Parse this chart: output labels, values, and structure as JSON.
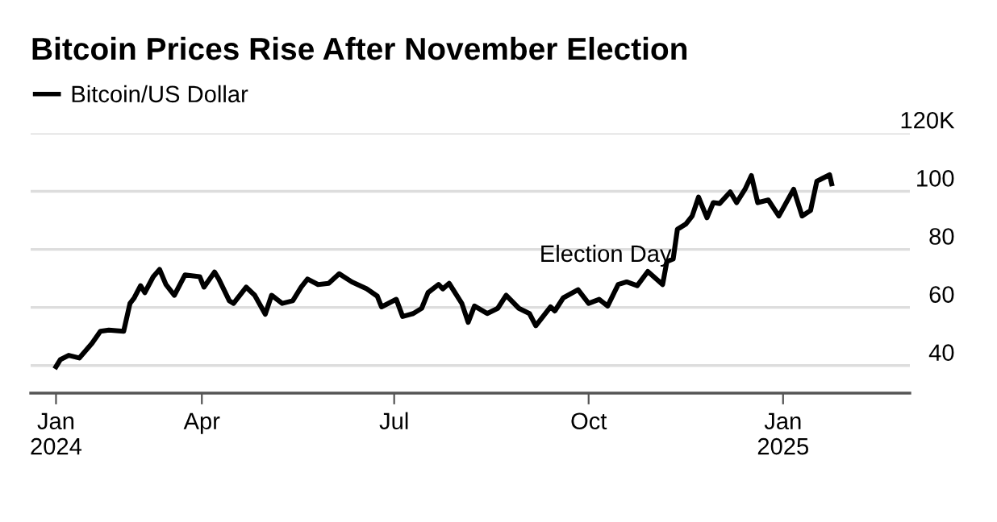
{
  "chart_data": {
    "type": "line",
    "title": "Bitcoin Prices Rise After November Election",
    "x": [
      "2024-01-23",
      "2024-01-25",
      "2024-01-29",
      "2024-02-03",
      "2024-02-09",
      "2024-02-13",
      "2024-02-17",
      "2024-02-24",
      "2024-02-27",
      "2024-02-29",
      "2024-03-03",
      "2024-03-05",
      "2024-03-09",
      "2024-03-12",
      "2024-03-15",
      "2024-03-19",
      "2024-03-24",
      "2024-03-31",
      "2024-04-02",
      "2024-04-07",
      "2024-04-09",
      "2024-04-14",
      "2024-04-16",
      "2024-04-22",
      "2024-04-26",
      "2024-05-01",
      "2024-05-04",
      "2024-05-09",
      "2024-05-14",
      "2024-05-18",
      "2024-05-21",
      "2024-05-26",
      "2024-05-31",
      "2024-06-05",
      "2024-06-11",
      "2024-06-18",
      "2024-06-23",
      "2024-06-25",
      "2024-07-02",
      "2024-07-05",
      "2024-07-10",
      "2024-07-14",
      "2024-07-17",
      "2024-07-22",
      "2024-07-24",
      "2024-07-27",
      "2024-08-02",
      "2024-08-05",
      "2024-08-08",
      "2024-08-14",
      "2024-08-19",
      "2024-08-23",
      "2024-08-29",
      "2024-09-03",
      "2024-09-06",
      "2024-09-13",
      "2024-09-15",
      "2024-09-19",
      "2024-09-26",
      "2024-10-01",
      "2024-10-06",
      "2024-10-10",
      "2024-10-15",
      "2024-10-19",
      "2024-10-24",
      "2024-10-29",
      "2024-11-05",
      "2024-11-07",
      "2024-11-10",
      "2024-11-12",
      "2024-11-16",
      "2024-11-19",
      "2024-11-22",
      "2024-11-26",
      "2024-11-29",
      "2024-12-02",
      "2024-12-07",
      "2024-12-10",
      "2024-12-14",
      "2024-12-17",
      "2024-12-20",
      "2024-12-25",
      "2024-12-30",
      "2025-01-06",
      "2025-01-10",
      "2025-01-14",
      "2025-01-17",
      "2025-01-23",
      "2025-01-24"
    ],
    "series": [
      {
        "name": "Bitcoin/US Dollar",
        "color": "#000000",
        "values": [
          39.6,
          42.0,
          43.5,
          42.6,
          47.6,
          51.8,
          52.2,
          51.8,
          61.4,
          63.3,
          67.5,
          65.1,
          70.6,
          73.1,
          67.9,
          64.2,
          71.2,
          70.6,
          67.0,
          72.2,
          69.8,
          62.3,
          61.4,
          67.0,
          64.2,
          57.7,
          64.2,
          61.4,
          62.3,
          67.0,
          69.8,
          67.9,
          68.3,
          71.6,
          68.8,
          66.4,
          63.9,
          60.2,
          62.8,
          56.9,
          57.9,
          59.7,
          65.1,
          67.9,
          66.4,
          68.3,
          61.4,
          54.9,
          60.5,
          57.9,
          59.7,
          64.2,
          59.7,
          57.9,
          53.7,
          60.2,
          58.8,
          63.3,
          66.1,
          61.4,
          62.8,
          60.5,
          67.9,
          68.8,
          67.5,
          72.4,
          67.9,
          75.8,
          76.7,
          86.9,
          88.7,
          91.5,
          98.0,
          90.9,
          96.1,
          95.8,
          99.8,
          96.1,
          100.7,
          105.4,
          96.1,
          97.0,
          91.5,
          100.7,
          91.5,
          93.4,
          103.5,
          105.7,
          102.6
        ]
      }
    ],
    "xlim": [
      "2024-01-11",
      "2025-03-02"
    ],
    "xticks": [
      {
        "value": "2024-01-23",
        "label": "Jan\n2024"
      },
      {
        "value": "2024-04-01",
        "label": "Apr"
      },
      {
        "value": "2024-07-01",
        "label": "Jul"
      },
      {
        "value": "2024-10-01",
        "label": "Oct"
      },
      {
        "value": "2025-01-01",
        "label": "Jan\n2025"
      }
    ],
    "ylim": [
      30.5,
      120
    ],
    "yticks": [
      40,
      60,
      80,
      100,
      {
        "value": 120,
        "label": "120K"
      }
    ],
    "annotations": [
      {
        "text": "Election Day",
        "x": "2024-11-05",
        "y": 67.9
      }
    ],
    "grid": "y",
    "legend": "top left",
    "line_style": "solid",
    "marker": "none"
  }
}
